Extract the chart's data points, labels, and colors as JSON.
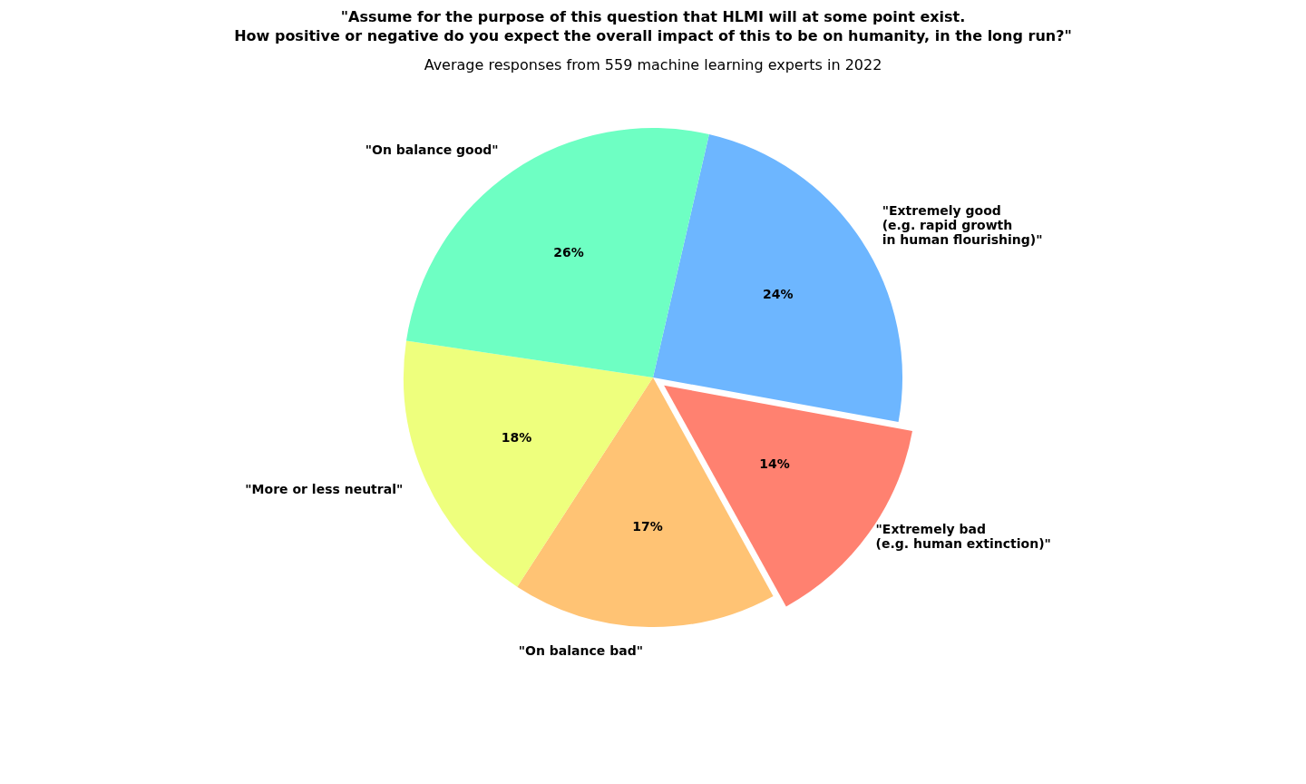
{
  "chart_data": {
    "type": "pie",
    "title": "\"Assume for the purpose of this question that HLMI will at some point exist.\nHow positive or negative do you expect the overall impact of this to be on humanity, in the long run?\"",
    "subtitle": "Average responses from 559 machine learning experts in 2022",
    "categories": [
      "\"Extremely good\n(e.g. rapid growth\nin human flourishing)\"",
      "\"Extremely bad\n(e.g. human extinction)\"",
      "\"On balance bad\"",
      "\"More or less neutral\"",
      "\"On balance good\""
    ],
    "values": [
      24,
      14,
      17,
      18,
      26
    ],
    "value_labels": [
      "24%",
      "14%",
      "17%",
      "18%",
      "26%"
    ],
    "colors": [
      "#6db6ff",
      "#ff8170",
      "#ffc374",
      "#eeff7d",
      "#6effc3"
    ],
    "legend": false
  }
}
